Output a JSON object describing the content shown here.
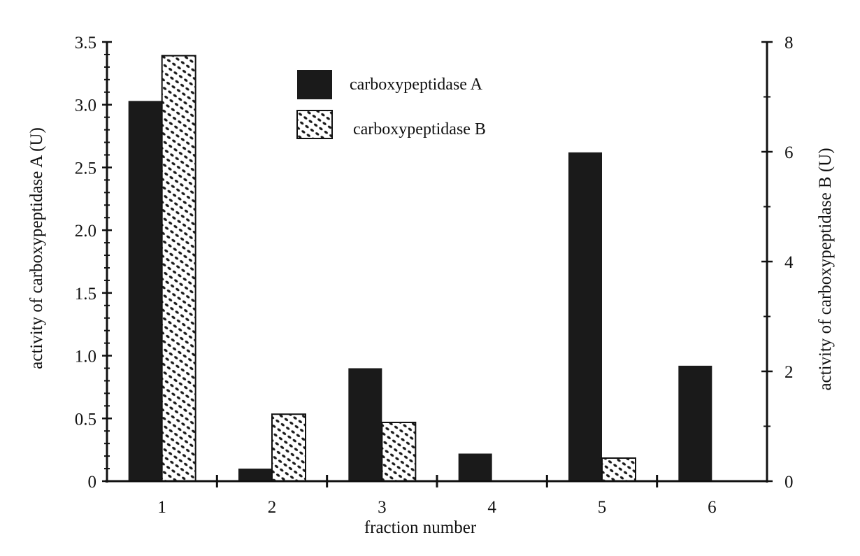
{
  "chart_data": {
    "type": "bar",
    "xlabel": "fraction number",
    "ylabel_left": "activity of carboxypeptidase A (U)",
    "ylabel_right": "activity of carboxypeptidase B (U)",
    "categories": [
      "1",
      "2",
      "3",
      "4",
      "5",
      "6"
    ],
    "left_axis": {
      "min": 0,
      "max": 3.5,
      "ticks": [
        "0",
        "0.5",
        "1.0",
        "1.5",
        "2.0",
        "2.5",
        "3.0",
        "3.5"
      ],
      "values": [
        0,
        0.5,
        1.0,
        1.5,
        2.0,
        2.5,
        3.0,
        3.5
      ]
    },
    "right_axis": {
      "min": 0,
      "max": 8,
      "ticks": [
        "0",
        "2",
        "4",
        "6",
        "8"
      ],
      "values": [
        0,
        2,
        4,
        6,
        8
      ]
    },
    "series": [
      {
        "name": "carboxypeptidase A",
        "axis": "left",
        "pattern": "solid",
        "values": [
          3.03,
          0.1,
          0.9,
          0.22,
          2.62,
          0.92
        ]
      },
      {
        "name": "carboxypeptidase B",
        "axis": "right",
        "pattern": "dotted",
        "values": [
          7.75,
          1.22,
          1.07,
          0,
          0.42,
          0
        ]
      }
    ],
    "legend_position": "top-center",
    "colors": {
      "bar_fill": "#1a1a1a",
      "pattern_bg": "#ffffff",
      "axis": "#111111"
    }
  }
}
